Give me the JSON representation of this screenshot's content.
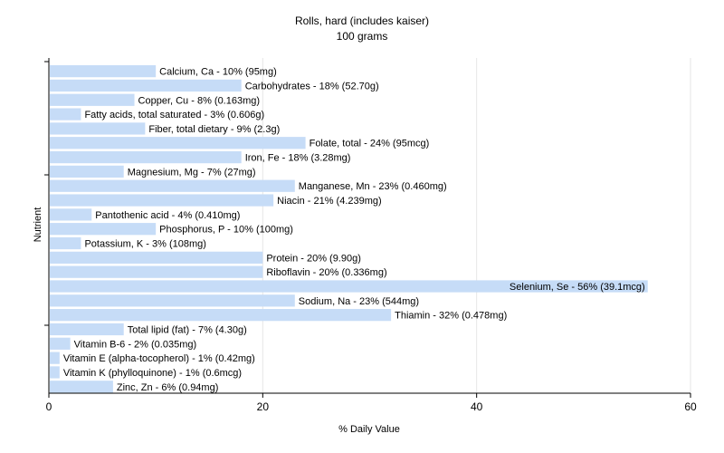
{
  "chart_data": {
    "type": "bar",
    "orientation": "horizontal",
    "title": "Rolls, hard (includes kaiser)",
    "subtitle": "100 grams",
    "xlabel": "% Daily Value",
    "ylabel": "Nutrient",
    "xlim": [
      0,
      60
    ],
    "xticks": [
      0,
      20,
      40,
      60
    ],
    "bar_color": "#c6dcf7",
    "grid": "vertical",
    "categories": [
      "Calcium, Ca",
      "Carbohydrates",
      "Copper, Cu",
      "Fatty acids, total saturated",
      "Fiber, total dietary",
      "Folate, total",
      "Iron, Fe",
      "Magnesium, Mg",
      "Manganese, Mn",
      "Niacin",
      "Pantothenic acid",
      "Phosphorus, P",
      "Potassium, K",
      "Protein",
      "Riboflavin",
      "Selenium, Se",
      "Sodium, Na",
      "Thiamin",
      "Total lipid (fat)",
      "Vitamin B-6",
      "Vitamin E (alpha-tocopherol)",
      "Vitamin K (phylloquinone)",
      "Zinc, Zn"
    ],
    "values": [
      10,
      18,
      8,
      3,
      9,
      24,
      18,
      7,
      23,
      21,
      4,
      10,
      3,
      20,
      20,
      56,
      23,
      32,
      7,
      2,
      1,
      1,
      6
    ],
    "labels": [
      "Calcium, Ca - 10% (95mg)",
      "Carbohydrates - 18% (52.70g)",
      "Copper, Cu - 8% (0.163mg)",
      "Fatty acids, total saturated - 3% (0.606g)",
      "Fiber, total dietary - 9% (2.3g)",
      "Folate, total - 24% (95mcg)",
      "Iron, Fe - 18% (3.28mg)",
      "Magnesium, Mg - 7% (27mg)",
      "Manganese, Mn - 23% (0.460mg)",
      "Niacin - 21% (4.239mg)",
      "Pantothenic acid - 4% (0.410mg)",
      "Phosphorus, P - 10% (100mg)",
      "Potassium, K - 3% (108mg)",
      "Protein - 20% (9.90g)",
      "Riboflavin - 20% (0.336mg)",
      "Selenium, Se - 56% (39.1mcg)",
      "Sodium, Na - 23% (544mg)",
      "Thiamin - 32% (0.478mg)",
      "Total lipid (fat) - 7% (4.30g)",
      "Vitamin B-6 - 2% (0.035mg)",
      "Vitamin E (alpha-tocopherol) - 1% (0.42mg)",
      "Vitamin K (phylloquinone) - 1% (0.6mcg)",
      "Zinc, Zn - 6% (0.94mg)"
    ]
  }
}
